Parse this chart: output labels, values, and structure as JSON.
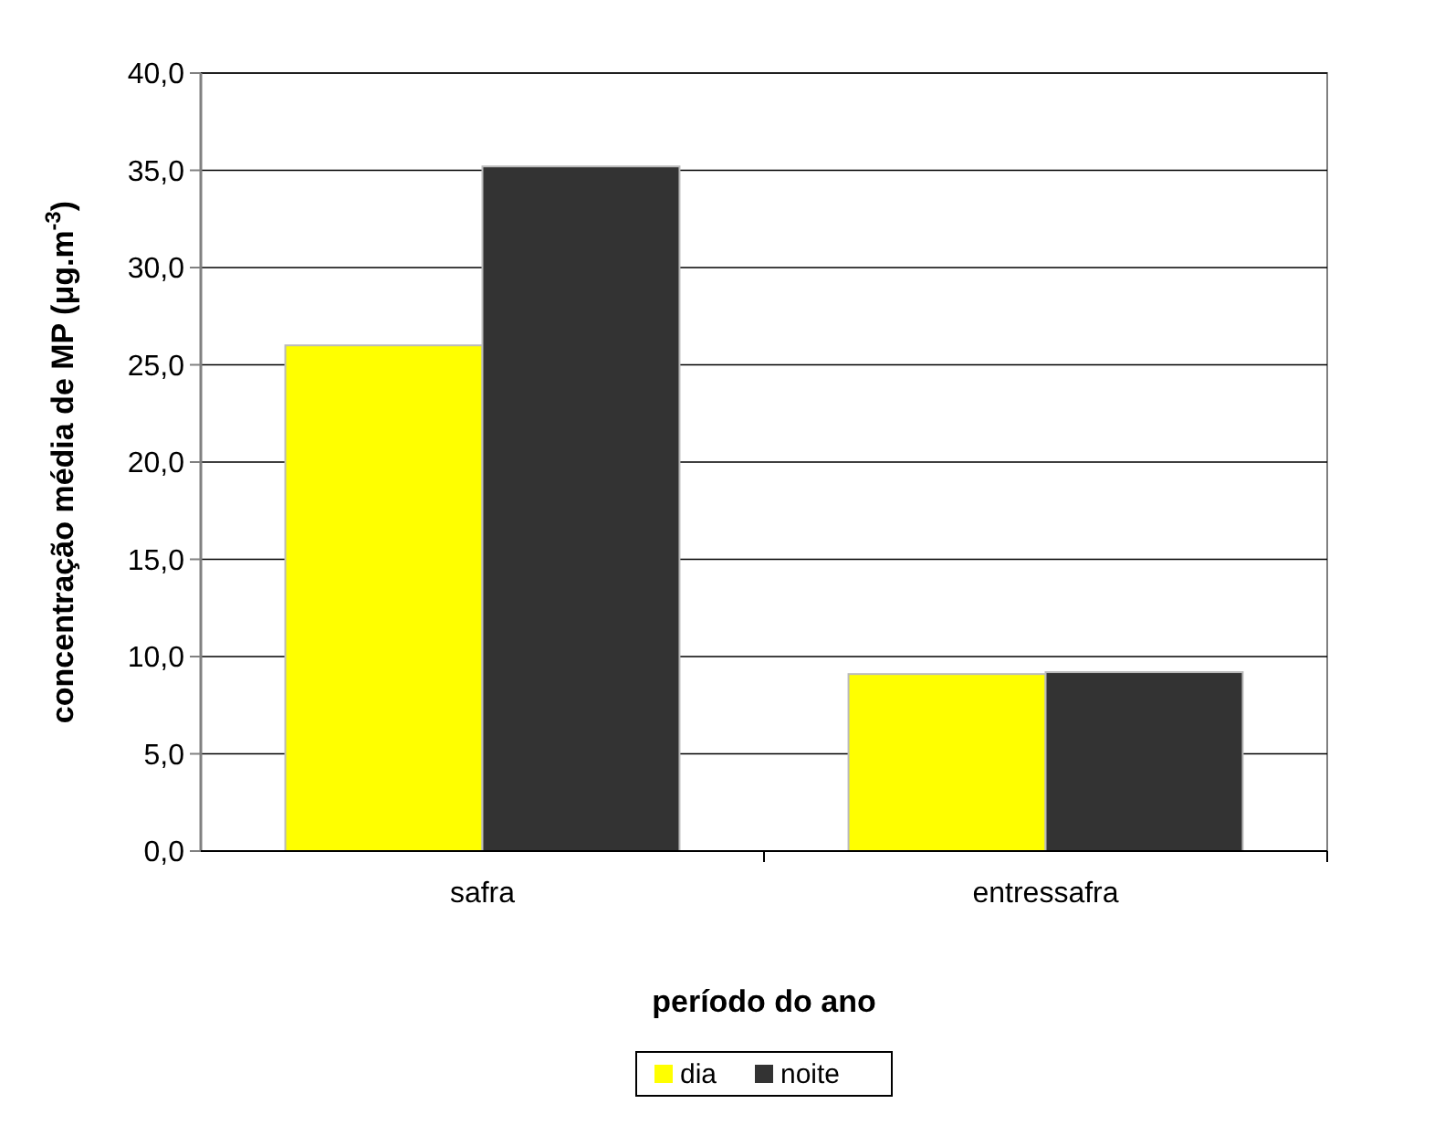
{
  "chart_data": {
    "type": "bar",
    "xlabel": "período do ano",
    "ylabel": "concentração média de MP (μg.m$^{-3}$)",
    "categories": [
      "safra",
      "entressafra"
    ],
    "series": [
      {
        "name": "dia",
        "color": "#ffff00",
        "values": [
          26.0,
          9.1
        ]
      },
      {
        "name": "noite",
        "color": "#333333",
        "values": [
          35.2,
          9.2
        ]
      }
    ],
    "ylim": [
      0,
      40
    ],
    "yticks": [
      {
        "value": 0,
        "label": "0,0"
      },
      {
        "value": 5,
        "label": "5,0"
      },
      {
        "value": 10,
        "label": "10,0"
      },
      {
        "value": 15,
        "label": "15,0"
      },
      {
        "value": 20,
        "label": "20,0"
      },
      {
        "value": 25,
        "label": "25,0"
      },
      {
        "value": 30,
        "label": "30,0"
      },
      {
        "value": 35,
        "label": "35,0"
      },
      {
        "value": 40,
        "label": "40,0"
      }
    ],
    "grid": "y",
    "legend": "bottom"
  }
}
